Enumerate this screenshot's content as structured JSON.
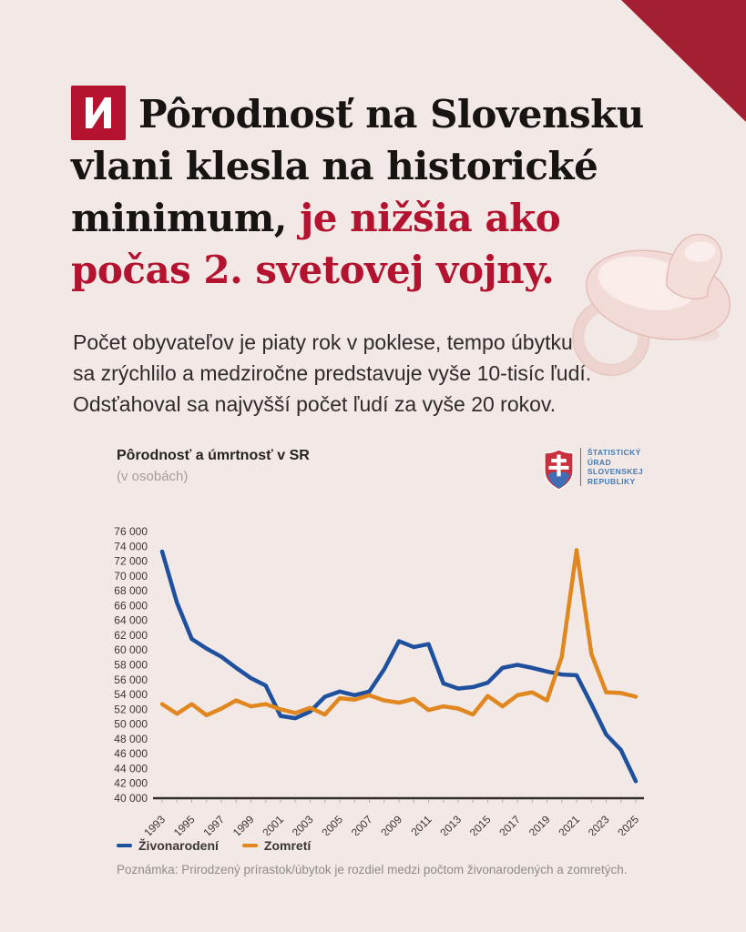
{
  "page": {
    "background": "#f2e9e6",
    "corner_triangle_color": "#a32033",
    "accent_red": "#b4132f"
  },
  "brand": {
    "logo_letter": "N",
    "logo_color": "#b5122f"
  },
  "headline": {
    "lines": [
      {
        "black": "Pôrodnosť na Slovensku",
        "red": ""
      },
      {
        "black": "vlani klesla na historické",
        "red": ""
      },
      {
        "black": "minimum,",
        "red": "je nižšia ako"
      },
      {
        "black": "",
        "red": "počas 2. svetovej vojny."
      }
    ]
  },
  "intro": {
    "text": "Počet obyvateľov je piaty rok v poklese, tempo úbytku sa zrýchlilo a medziročne predstavuje vyše 10-tisíc ľudí. Odsťahoval sa najvyšší počet ľudí za vyše 20 rokov."
  },
  "chart": {
    "title": "Pôrodnosť a úmrtnosť v SR",
    "subtitle": "(v osobách)",
    "source_logo": {
      "line1": "ŠTATISTICKÝ",
      "line2": "ÚRAD",
      "line3": "SLOVENSKEJ",
      "line4": "REPUBLIKY",
      "text_color": "#4579b2"
    },
    "note": "Poznámka: Prirodzený prírastok/úbytok je rozdiel medzi počtom živonarodených a zomretých."
  },
  "chart_data": {
    "type": "line",
    "title": "Pôrodnosť a úmrtnosť v SR",
    "ylabel": "(v osobách)",
    "x": [
      1993,
      1994,
      1995,
      1996,
      1997,
      1998,
      1999,
      2000,
      2001,
      2002,
      2003,
      2004,
      2005,
      2006,
      2007,
      2008,
      2009,
      2010,
      2011,
      2012,
      2013,
      2014,
      2015,
      2016,
      2017,
      2018,
      2019,
      2020,
      2021,
      2022,
      2023,
      2024,
      2025
    ],
    "x_tick_labels": [
      "1993",
      "1995",
      "1997",
      "1999",
      "2001",
      "2003",
      "2005",
      "2007",
      "2009",
      "2011",
      "2013",
      "2015",
      "2017",
      "2019",
      "2021",
      "2023",
      "2025"
    ],
    "ylim": [
      40000,
      76000
    ],
    "y_tick_step": 2000,
    "y_tick_labels": [
      "40 000",
      "42 000",
      "44 000",
      "46 000",
      "48 000",
      "50 000",
      "52 000",
      "54 000",
      "56 000",
      "58 000",
      "60 000",
      "62 000",
      "64 000",
      "66 000",
      "68 000",
      "70 000",
      "72 000",
      "74 000",
      "76 000"
    ],
    "grid": false,
    "legend_position": "bottom",
    "series": [
      {
        "name": "Živonarodení",
        "color": "#1f509e",
        "values": [
          73300,
          66400,
          61500,
          60200,
          59100,
          57600,
          56200,
          55200,
          51100,
          50800,
          51700,
          53700,
          54400,
          53900,
          54400,
          57400,
          61200,
          60400,
          60800,
          55500,
          54800,
          55000,
          55600,
          57600,
          58000,
          57600,
          57100,
          56700,
          56600,
          52700,
          48600,
          46500,
          42300
        ]
      },
      {
        "name": "Zomretí",
        "color": "#e0871f",
        "values": [
          52700,
          51400,
          52700,
          51200,
          52100,
          53200,
          52400,
          52700,
          52000,
          51500,
          52200,
          51300,
          53500,
          53300,
          53900,
          53200,
          52900,
          53400,
          51900,
          52400,
          52100,
          51300,
          53800,
          52400,
          53900,
          54300,
          53200,
          59100,
          73500,
          59500,
          54300,
          54200,
          53700
        ]
      }
    ]
  }
}
